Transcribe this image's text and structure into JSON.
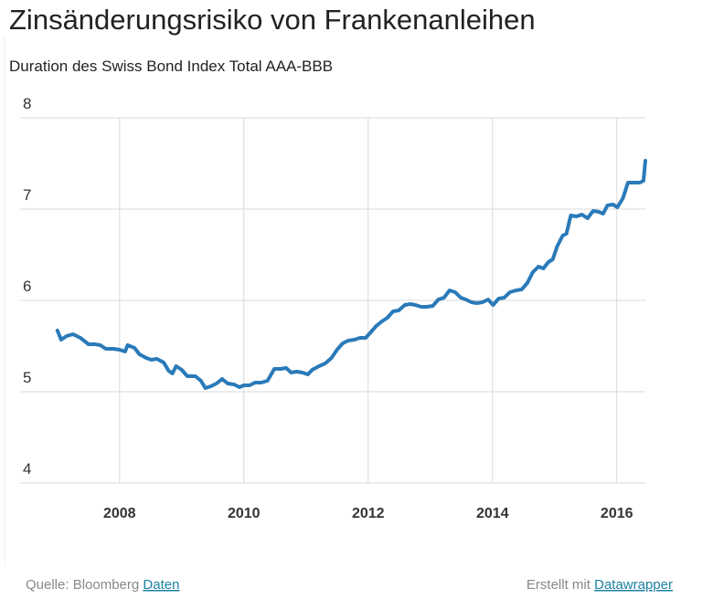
{
  "chart_data": {
    "type": "line",
    "title": "Zinsänderungsrisiko von Frankenanleihen",
    "subtitle": "Duration des Swiss Bond Index Total AAA-BBB",
    "x": [
      2007.0,
      2007.06,
      2007.15,
      2007.25,
      2007.37,
      2007.5,
      2007.6,
      2007.69,
      2007.78,
      2007.9,
      2008.0,
      2008.09,
      2008.13,
      2008.24,
      2008.32,
      2008.43,
      2008.51,
      2008.6,
      2008.71,
      2008.79,
      2008.85,
      2008.91,
      2009.0,
      2009.09,
      2009.22,
      2009.31,
      2009.38,
      2009.47,
      2009.56,
      2009.65,
      2009.74,
      2009.84,
      2009.93,
      2010.0,
      2010.09,
      2010.18,
      2010.28,
      2010.38,
      2010.49,
      2010.59,
      2010.68,
      2010.76,
      2010.85,
      2010.94,
      2011.03,
      2011.1,
      2011.21,
      2011.31,
      2011.41,
      2011.5,
      2011.59,
      2011.68,
      2011.78,
      2011.87,
      2011.96,
      2012.04,
      2012.13,
      2012.22,
      2012.31,
      2012.4,
      2012.49,
      2012.59,
      2012.68,
      2012.76,
      2012.85,
      2012.94,
      2013.04,
      2013.13,
      2013.22,
      2013.31,
      2013.4,
      2013.49,
      2013.57,
      2013.66,
      2013.75,
      2013.84,
      2013.93,
      2014.01,
      2014.1,
      2014.19,
      2014.28,
      2014.38,
      2014.47,
      2014.56,
      2014.65,
      2014.74,
      2014.82,
      2014.9,
      2014.97,
      2015.04,
      2015.13,
      2015.19,
      2015.26,
      2015.35,
      2015.44,
      2015.53,
      2015.62,
      2015.71,
      2015.78,
      2015.85,
      2015.94,
      2016.01,
      2016.1,
      2016.18,
      2016.26,
      2016.37,
      2016.43,
      2016.46
    ],
    "series": [
      {
        "name": "Duration",
        "color": "#2a7ab9",
        "values": [
          5.67,
          5.57,
          5.61,
          5.63,
          5.59,
          5.52,
          5.52,
          5.51,
          5.47,
          5.47,
          5.46,
          5.44,
          5.51,
          5.48,
          5.41,
          5.37,
          5.35,
          5.36,
          5.32,
          5.23,
          5.2,
          5.28,
          5.24,
          5.17,
          5.17,
          5.12,
          5.04,
          5.06,
          5.09,
          5.14,
          5.09,
          5.08,
          5.05,
          5.07,
          5.07,
          5.1,
          5.1,
          5.12,
          5.25,
          5.25,
          5.26,
          5.21,
          5.22,
          5.21,
          5.19,
          5.24,
          5.28,
          5.31,
          5.37,
          5.46,
          5.53,
          5.56,
          5.57,
          5.59,
          5.59,
          5.65,
          5.72,
          5.77,
          5.81,
          5.88,
          5.89,
          5.95,
          5.96,
          5.95,
          5.93,
          5.93,
          5.94,
          6.01,
          6.03,
          6.11,
          6.09,
          6.03,
          6.01,
          5.98,
          5.97,
          5.98,
          6.01,
          5.95,
          6.02,
          6.03,
          6.09,
          6.11,
          6.12,
          6.19,
          6.31,
          6.37,
          6.35,
          6.42,
          6.45,
          6.59,
          6.71,
          6.73,
          6.93,
          6.92,
          6.94,
          6.9,
          6.98,
          6.97,
          6.95,
          7.04,
          7.05,
          7.02,
          7.12,
          7.29,
          7.29,
          7.29,
          7.31,
          7.53
        ]
      }
    ],
    "xlim": [
      2006.4,
      2016.46
    ],
    "xticks": [
      2008,
      2010,
      2012,
      2014,
      2016
    ],
    "ylim": [
      4,
      8
    ],
    "yticks": [
      4,
      5,
      6,
      7,
      8
    ],
    "grid": true
  },
  "footer": {
    "source": "Quelle: Bloomberg",
    "source_link": "Daten",
    "credit": "Erstellt mit",
    "credit_link": "Datawrapper"
  }
}
